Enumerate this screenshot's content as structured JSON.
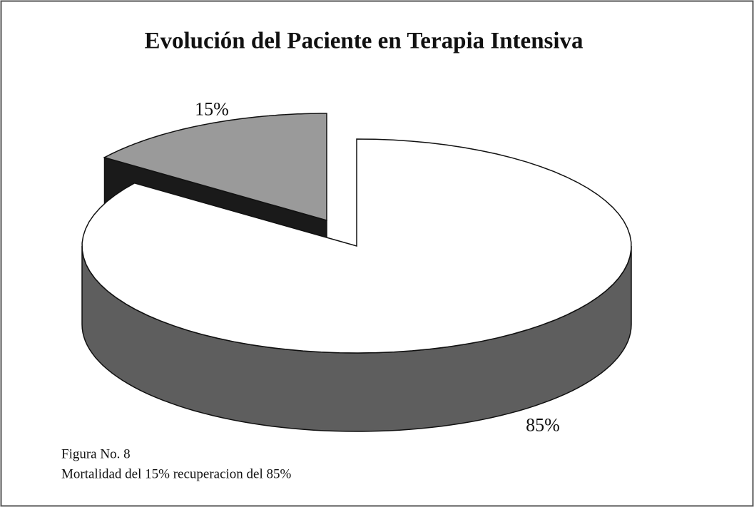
{
  "chart_data": {
    "type": "pie3d",
    "title": "Evolución del Paciente en Terapia Intensiva",
    "values": [
      85,
      15
    ],
    "value_labels": [
      "85%",
      "15%"
    ],
    "colors": [
      "#ffffff",
      "#9a9a9a"
    ],
    "caption": [
      "Figura No. 8",
      "Mortalidad del 15% recuperacion del 85%"
    ]
  }
}
